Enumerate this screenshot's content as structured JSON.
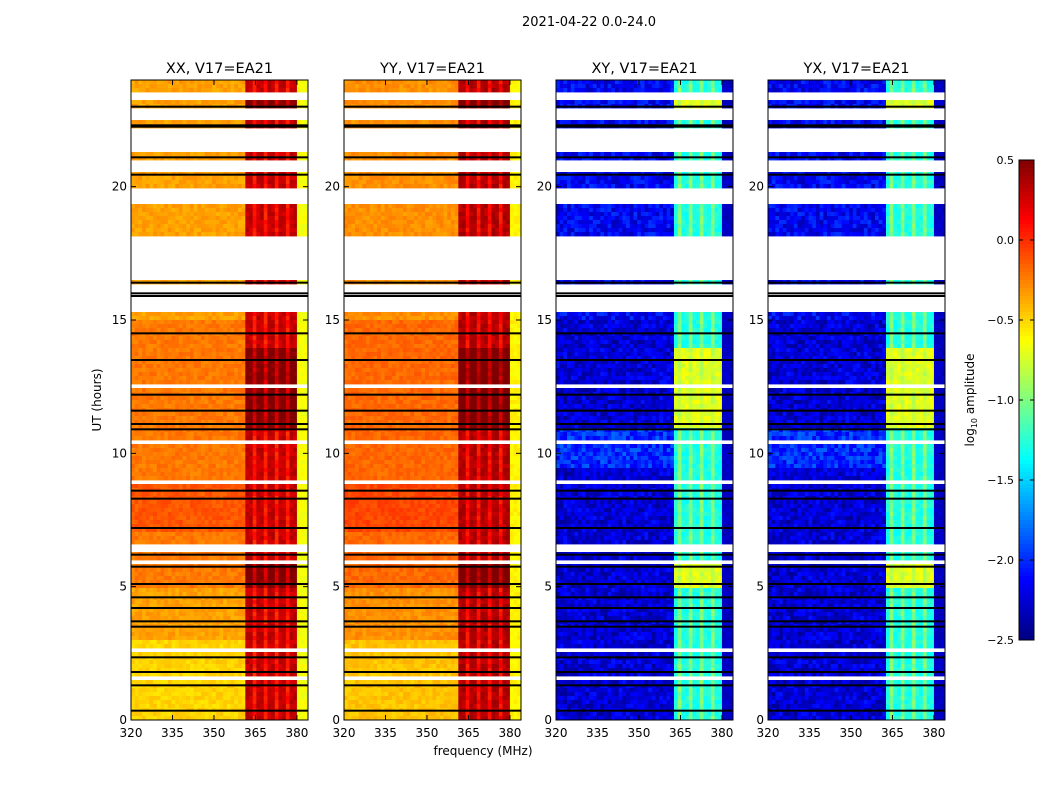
{
  "chart_data": {
    "type": "heatmap",
    "suptitle": "2021-04-22 0.0-24.0",
    "xlabel": "frequency (MHz)",
    "ylabel": "UT (hours)",
    "xlim": [
      320,
      384
    ],
    "ylim": [
      0,
      24
    ],
    "xticks": [
      320,
      335,
      350,
      365,
      380
    ],
    "yticks": [
      0,
      5,
      10,
      15,
      20
    ],
    "colorbar": {
      "label": "log10 amplitude",
      "label_main": "log",
      "label_sub": "10",
      "label_rest": " amplitude",
      "colormap": "jet",
      "range": [
        -2.5,
        0.5
      ],
      "ticks": [
        0.5,
        0.0,
        -0.5,
        -1.0,
        -1.5,
        -2.0,
        -2.5
      ],
      "tick_labels": [
        "0.5",
        "0.0",
        "−0.5",
        "−1.0",
        "−1.5",
        "−2.0",
        "−2.5"
      ]
    },
    "panels": [
      {
        "title": "XX, V17=EA21",
        "baseline_log_amp": -0.35,
        "rfi_band_mhz": [
          362,
          380
        ],
        "rfi_log_amp": 0.3,
        "band_edge_log_amp": -0.65
      },
      {
        "title": "YY, V17=EA21",
        "baseline_log_amp": -0.3,
        "rfi_band_mhz": [
          362,
          380
        ],
        "rfi_log_amp": 0.35,
        "band_edge_log_amp": -0.6
      },
      {
        "title": "XY, V17=EA21",
        "baseline_log_amp": -2.25,
        "rfi_band_mhz": [
          362.5,
          379.5
        ],
        "rfi_log_amp": -0.9,
        "band_edge_log_amp": -2.3
      },
      {
        "title": "YX, V17=EA21",
        "baseline_log_amp": -2.25,
        "rfi_band_mhz": [
          362.5,
          379.5
        ],
        "rfi_log_amp": -0.9,
        "band_edge_log_amp": -2.3
      }
    ],
    "flagged_hours_white": [
      [
        23.3,
        23.5
      ],
      [
        22.45,
        22.9
      ],
      [
        21.25,
        22.2
      ],
      [
        20.55,
        21.0
      ],
      [
        19.3,
        19.9
      ],
      [
        16.5,
        18.1
      ],
      [
        15.35,
        16.3
      ],
      [
        12.5,
        12.6
      ],
      [
        10.35,
        10.5
      ],
      [
        8.9,
        9.0
      ],
      [
        6.3,
        6.55
      ],
      [
        5.9,
        6.05
      ],
      [
        2.5,
        2.7
      ],
      [
        1.55,
        1.65
      ]
    ],
    "flagged_hours_black": [
      23.0,
      22.3,
      22.25,
      21.1,
      20.45,
      16.4,
      16.0,
      15.9,
      14.5,
      13.5,
      12.2,
      11.6,
      11.1,
      10.9,
      8.6,
      8.3,
      7.2,
      6.2,
      5.75,
      5.1,
      4.6,
      4.2,
      3.7,
      3.5,
      2.35,
      1.8,
      1.3,
      0.35
    ]
  }
}
